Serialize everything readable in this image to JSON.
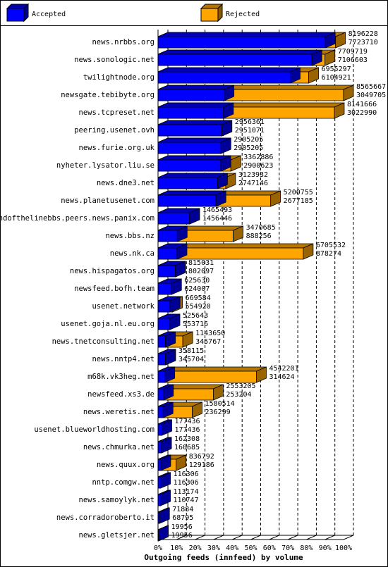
{
  "chart_data": {
    "type": "bar3d-overlay",
    "orientation": "horizontal",
    "x_label": "Outgoing feeds (innfeed) by volume",
    "categories": [
      "news.nrbbs.org",
      "news.sonologic.net",
      "twilightnode.org",
      "newsgate.tebibyte.org",
      "news.tcpreset.net",
      "peering.usenet.ovh",
      "news.furie.org.uk",
      "nyheter.lysator.liu.se",
      "news.dne3.net",
      "news.planetusenet.com",
      "endofthelinebbs.peers.news.panix.com",
      "news.bbs.nz",
      "news.nk.ca",
      "news.hispagatos.org",
      "newsfeed.bofh.team",
      "usenet.network",
      "usenet.goja.nl.eu.org",
      "news.tnetconsulting.net",
      "news.nntp4.net",
      "m68k.vk3heg.net",
      "newsfeed.xs3.de",
      "news.weretis.net",
      "usenet.blueworldhosting.com",
      "news.chmurka.net",
      "news.quux.org",
      "nntp.comgw.net",
      "news.samoylyk.net",
      "news.corradoroberto.it",
      "news.gletsjer.net"
    ],
    "series": [
      {
        "name": "Accepted",
        "color": "#0000ff",
        "values": [
          7723710,
          7106603,
          6104921,
          3049705,
          3022990,
          2951071,
          2905205,
          2900623,
          2747146,
          2677185,
          1456446,
          888256,
          878274,
          802097,
          624007,
          554920,
          553716,
          345767,
          345704,
          314624,
          253204,
          236299,
          177436,
          160685,
          129186,
          116306,
          110747,
          68795,
          19956
        ]
      },
      {
        "name": "Rejected",
        "color": "#ffa500",
        "values": [
          8196228,
          7709719,
          6955297,
          8565667,
          8141666,
          2956361,
          2905205,
          3362886,
          3123932,
          5200755,
          1465493,
          3470685,
          6705532,
          815031,
          625630,
          669584,
          525643,
          1143650,
          358115,
          4542201,
          2553205,
          1580514,
          177436,
          162308,
          836792,
          116306,
          113174,
          71884,
          19956
        ]
      }
    ],
    "xlim": [
      0,
      8565667
    ],
    "xticks": [
      {
        "value": 0,
        "label": "0%"
      },
      {
        "value": 856566.7,
        "label": "10%"
      },
      {
        "value": 1713133.4,
        "label": "20%"
      },
      {
        "value": 2569700.1,
        "label": "30%"
      },
      {
        "value": 3426266.8,
        "label": "40%"
      },
      {
        "value": 4282833.5,
        "label": "50%"
      },
      {
        "value": 5139400.2,
        "label": "60%"
      },
      {
        "value": 5995966.9,
        "label": "70%"
      },
      {
        "value": 6852533.6,
        "label": "80%"
      },
      {
        "value": 7709100.3,
        "label": "90%"
      },
      {
        "value": 8565667,
        "label": "100%"
      }
    ],
    "grid": true
  }
}
